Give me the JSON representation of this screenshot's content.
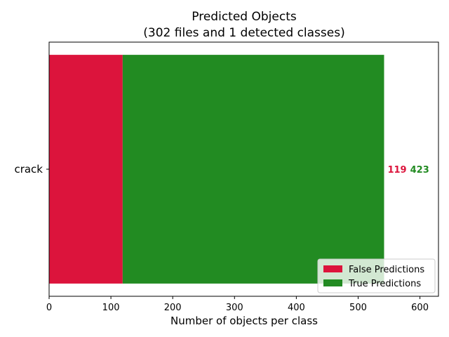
{
  "chart_data": {
    "type": "bar",
    "orientation": "horizontal",
    "stacked": true,
    "title": "Predicted Objects",
    "subtitle": "(302 files and 1 detected classes)",
    "xlabel": "Number of objects per class",
    "ylabel": "",
    "xlim": [
      0,
      630
    ],
    "x_ticks": [
      0,
      100,
      200,
      300,
      400,
      500,
      600
    ],
    "grid": false,
    "legend_position": "lower-right",
    "categories": [
      "crack"
    ],
    "series": [
      {
        "name": "False Predictions",
        "values": [
          119
        ],
        "color": "#dc143c"
      },
      {
        "name": "True Predictions",
        "values": [
          423
        ],
        "color": "#228b22"
      }
    ]
  }
}
